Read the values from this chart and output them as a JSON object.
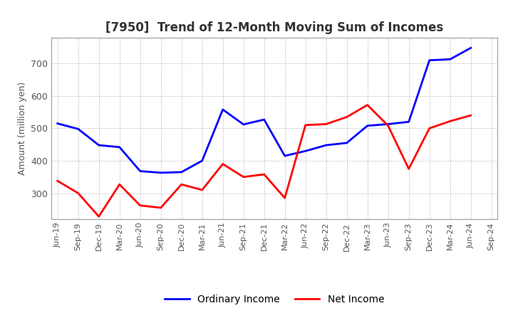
{
  "title": "[7950]  Trend of 12-Month Moving Sum of Incomes",
  "ylabel": "Amount (million yen)",
  "labels": [
    "Jun-19",
    "Sep-19",
    "Dec-19",
    "Mar-20",
    "Jun-20",
    "Sep-20",
    "Dec-20",
    "Mar-21",
    "Jun-21",
    "Sep-21",
    "Dec-21",
    "Mar-22",
    "Jun-22",
    "Sep-22",
    "Dec-22",
    "Mar-23",
    "Jun-23",
    "Sep-23",
    "Dec-23",
    "Mar-24",
    "Jun-24",
    "Sep-24"
  ],
  "ordinary_income": [
    515,
    498,
    448,
    442,
    368,
    363,
    365,
    400,
    558,
    512,
    527,
    415,
    430,
    448,
    455,
    508,
    513,
    520,
    710,
    713,
    748,
    null
  ],
  "net_income": [
    338,
    300,
    228,
    327,
    262,
    255,
    327,
    310,
    390,
    350,
    358,
    285,
    510,
    513,
    535,
    572,
    508,
    375,
    500,
    522,
    540,
    null
  ],
  "ordinary_color": "#0000ff",
  "net_color": "#ff0000",
  "ylim_min": 220,
  "ylim_max": 780,
  "yticks": [
    300,
    400,
    500,
    600,
    700
  ],
  "background_color": "#ffffff",
  "plot_bg_color": "#ffffff",
  "grid_color": "#aaaaaa",
  "title_color": "#333333",
  "tick_color": "#555555",
  "legend_ordinary": "Ordinary Income",
  "legend_net": "Net Income"
}
